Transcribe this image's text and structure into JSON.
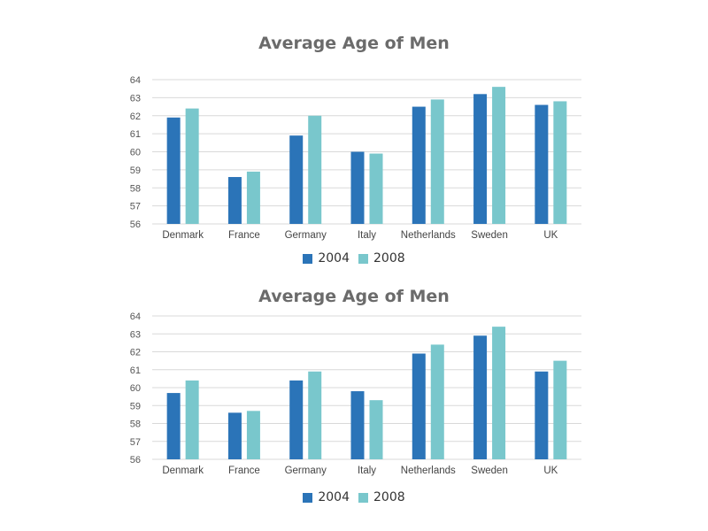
{
  "colors": {
    "2004": "#2b74b8",
    "2008": "#79c7cc",
    "grid": "#d9d9d9",
    "text": "#555555",
    "title": "#6b6b6b"
  },
  "chart_data": [
    {
      "type": "bar",
      "title": "Average Age of Men",
      "categories": [
        "Denmark",
        "France",
        "Germany",
        "Italy",
        "Netherlands",
        "Sweden",
        "UK"
      ],
      "series": [
        {
          "name": "2004",
          "values": [
            61.9,
            58.6,
            60.9,
            60.0,
            62.5,
            63.2,
            62.6
          ]
        },
        {
          "name": "2008",
          "values": [
            62.4,
            58.9,
            62.0,
            59.9,
            62.9,
            63.6,
            62.8
          ]
        }
      ],
      "ylim": [
        56,
        64
      ],
      "yticks": [
        "56",
        "57",
        "58",
        "59",
        "60",
        "61",
        "62",
        "63",
        "64"
      ],
      "grid": true,
      "legend": "bottom"
    },
    {
      "type": "bar",
      "title": "Average Age of Men",
      "categories": [
        "Denmark",
        "France",
        "Germany",
        "Italy",
        "Netherlands",
        "Sweden",
        "UK"
      ],
      "series": [
        {
          "name": "2004",
          "values": [
            59.7,
            58.6,
            60.4,
            59.8,
            61.9,
            62.9,
            60.9
          ]
        },
        {
          "name": "2008",
          "values": [
            60.4,
            58.7,
            60.9,
            59.3,
            62.4,
            63.4,
            61.5
          ]
        }
      ],
      "ylim": [
        56,
        64
      ],
      "yticks": [
        "56",
        "57",
        "58",
        "59",
        "60",
        "61",
        "62",
        "63",
        "64"
      ],
      "grid": true,
      "legend": "bottom"
    }
  ]
}
